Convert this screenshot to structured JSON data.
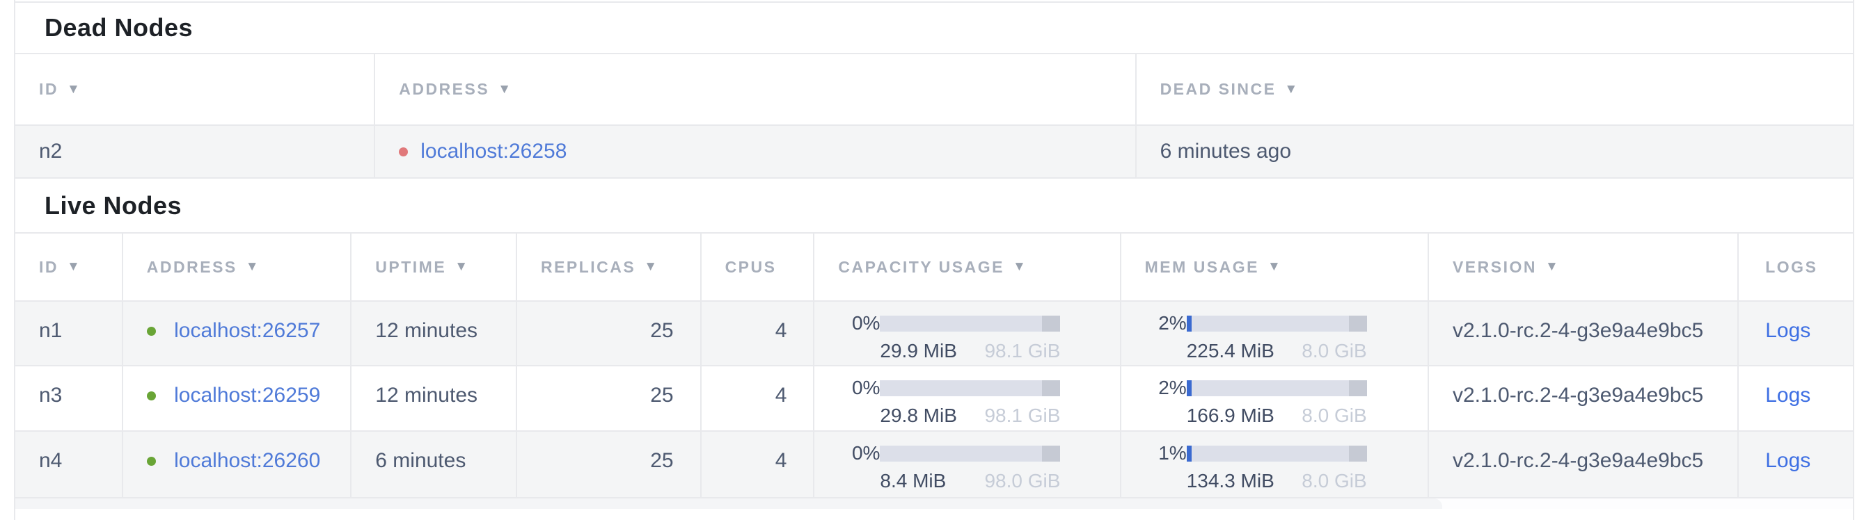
{
  "icons": {
    "sort_desc": "▼",
    "status_dot_live": "green-circle",
    "status_dot_dead": "red-circle"
  },
  "colors": {
    "border": "#e8e9ec",
    "stripe": "#f4f5f6",
    "title_text": "#1d2126",
    "head_text": "#a8afbb",
    "arrow": "#99a1ad",
    "cell_text": "#4d5970",
    "muted": "#c6ccd7",
    "link": "#4f7ad8",
    "logs_link": "#3e6fe3",
    "dot_live": "#69a536",
    "dot_dead": "#e0787a",
    "bar_track": "#dcdfe9",
    "bar_cap": "#c6cad4",
    "bar_fill": "#3b6ad0",
    "strip_bg": "#f4f5f7"
  },
  "dead_nodes": {
    "title": "Dead Nodes",
    "columns": [
      {
        "label": "ID",
        "sort": "desc"
      },
      {
        "label": "ADDRESS",
        "sort": "desc"
      },
      {
        "label": "DEAD SINCE",
        "sort": "desc"
      }
    ],
    "rows": [
      {
        "id": "n2",
        "status": "dead",
        "address": "localhost:26258",
        "dead_since": "6 minutes ago"
      }
    ]
  },
  "live_nodes": {
    "title": "Live Nodes",
    "columns": [
      {
        "label": "ID",
        "sort": "desc"
      },
      {
        "label": "ADDRESS",
        "sort": "desc"
      },
      {
        "label": "UPTIME",
        "sort": "desc"
      },
      {
        "label": "REPLICAS",
        "sort": "desc"
      },
      {
        "label": "CPUS"
      },
      {
        "label": "CAPACITY USAGE",
        "sort": "desc"
      },
      {
        "label": "MEM USAGE",
        "sort": "desc"
      },
      {
        "label": "VERSION",
        "sort": "desc"
      },
      {
        "label": "LOGS"
      }
    ],
    "rows": [
      {
        "id": "n1",
        "status": "live",
        "address": "localhost:26257",
        "uptime": "12 minutes",
        "replicas": "25",
        "cpus": "4",
        "capacity": {
          "percent": "0%",
          "percent_value": 0,
          "used": "29.9 MiB",
          "total": "98.1 GiB"
        },
        "memory": {
          "percent": "2%",
          "percent_value": 2,
          "used": "225.4 MiB",
          "total": "8.0 GiB"
        },
        "version": "v2.1.0-rc.2-4-g3e9a4e9bc5",
        "logs": "Logs"
      },
      {
        "id": "n3",
        "status": "live",
        "address": "localhost:26259",
        "uptime": "12 minutes",
        "replicas": "25",
        "cpus": "4",
        "capacity": {
          "percent": "0%",
          "percent_value": 0,
          "used": "29.8 MiB",
          "total": "98.1 GiB"
        },
        "memory": {
          "percent": "2%",
          "percent_value": 2,
          "used": "166.9 MiB",
          "total": "8.0 GiB"
        },
        "version": "v2.1.0-rc.2-4-g3e9a4e9bc5",
        "logs": "Logs"
      },
      {
        "id": "n4",
        "status": "live",
        "address": "localhost:26260",
        "uptime": "6 minutes",
        "replicas": "25",
        "cpus": "4",
        "capacity": {
          "percent": "0%",
          "percent_value": 0,
          "used": "8.4 MiB",
          "total": "98.0 GiB"
        },
        "memory": {
          "percent": "1%",
          "percent_value": 1,
          "used": "134.3 MiB",
          "total": "8.0 GiB"
        },
        "version": "v2.1.0-rc.2-4-g3e9a4e9bc5",
        "logs": "Logs"
      }
    ]
  }
}
